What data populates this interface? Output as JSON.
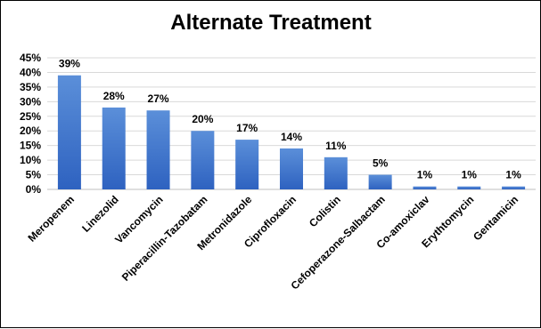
{
  "chart_data": {
    "type": "bar",
    "title": "Alternate Treatment",
    "xlabel": "",
    "ylabel": "",
    "categories": [
      "Meropenem",
      "Linezolid",
      "Vancomycin",
      "Piperacillin-Tazobatam",
      "Metronidazole",
      "Ciprofloxacin",
      "Colistin",
      "Cefoperazone-Salbactam",
      "Co-amoxiclav",
      "Erythtomycin",
      "Gentamicin"
    ],
    "values": [
      39,
      28,
      27,
      20,
      17,
      14,
      11,
      5,
      1,
      1,
      1
    ],
    "value_labels": [
      "39%",
      "28%",
      "27%",
      "20%",
      "17%",
      "14%",
      "11%",
      "5%",
      "1%",
      "1%",
      "1%"
    ],
    "ylim": [
      0,
      45
    ],
    "yticks": [
      0,
      5,
      10,
      15,
      20,
      25,
      30,
      35,
      40,
      45
    ],
    "ytick_labels": [
      "0%",
      "5%",
      "10%",
      "15%",
      "20%",
      "25%",
      "30%",
      "35%",
      "40%",
      "45%"
    ],
    "grid": true,
    "legend": "none",
    "bar_color_top": "#5b8fd9",
    "bar_color_bottom": "#2e62c0"
  }
}
